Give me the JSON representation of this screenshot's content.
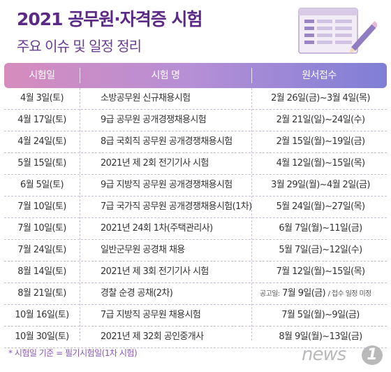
{
  "title": "2021 공무원·자격증 시험",
  "subtitle": "주요 이슈 및 일정 정리",
  "table": {
    "headers": [
      "시험일",
      "시험 명",
      "원서접수"
    ],
    "rows": [
      {
        "date": "4월 3일(토)",
        "name": "소방공무원 신규채용시험",
        "application": "2월 26일(금)~3월 4일(목)"
      },
      {
        "date": "4월 17일(토)",
        "name": "9급 공무원 공개경쟁채용시험",
        "application": "2월 21일(일)~24일(수)"
      },
      {
        "date": "4월 24일(토)",
        "name": "8급 국회직 공무원 공개경쟁채용시험",
        "application": "2월 15일(월)~19일(금)"
      },
      {
        "date": "5월 15일(토)",
        "name": "2021년 제 2회 전기기사 시험",
        "application": "4월 12일(월)~15일(목)"
      },
      {
        "date": "6월 5일(토)",
        "name": "9급 지방직 공무원 공개경쟁채용시험",
        "application": "3월 29일(월)~4월 2일(금)"
      },
      {
        "date": "7월 10일(토)",
        "name": "7급 국가직 공무원 공개경쟁채용시험(1차)",
        "application": "5월 24일(월)~27일(목)"
      },
      {
        "date": "7월 10일(토)",
        "name": "2021년 24회 1차(주택관리사)",
        "application": "6월 7일(월)~11일(금)"
      },
      {
        "date": "7월 24일(토)",
        "name": "일반군무원 공경채 채용",
        "application": "5월 7일(금)~12일(수)"
      },
      {
        "date": "8월 14일(토)",
        "name": "2021년 제 3회 전기기사 시험",
        "application": "7월 12일(월)~15일(목)"
      },
      {
        "date": "8월 21일(토)",
        "name": "경찰 순경 공채(2차)",
        "application_lead": "공고일:",
        "application": "7월 9일(금)",
        "application_tail": "/ 접수 일정 미정"
      },
      {
        "date": "10월 16일(토)",
        "name": "7급 지방직 공무원 채용시험",
        "application": "7월 5일(월)~9일(금)"
      },
      {
        "date": "10월 30일(토)",
        "name": "2021년 제 32회 공인중개사",
        "application": "8월 9일(월)~13일(금)"
      }
    ]
  },
  "footnote": "* 시험일 기준 = 필기시험일(1차 시험)",
  "logo": {
    "text": "news",
    "badge": "1"
  },
  "colors": {
    "title": "#5a2a86",
    "header_start": "#d68cbd",
    "header_end": "#7f7fd6",
    "footnote": "#8a55b5"
  }
}
